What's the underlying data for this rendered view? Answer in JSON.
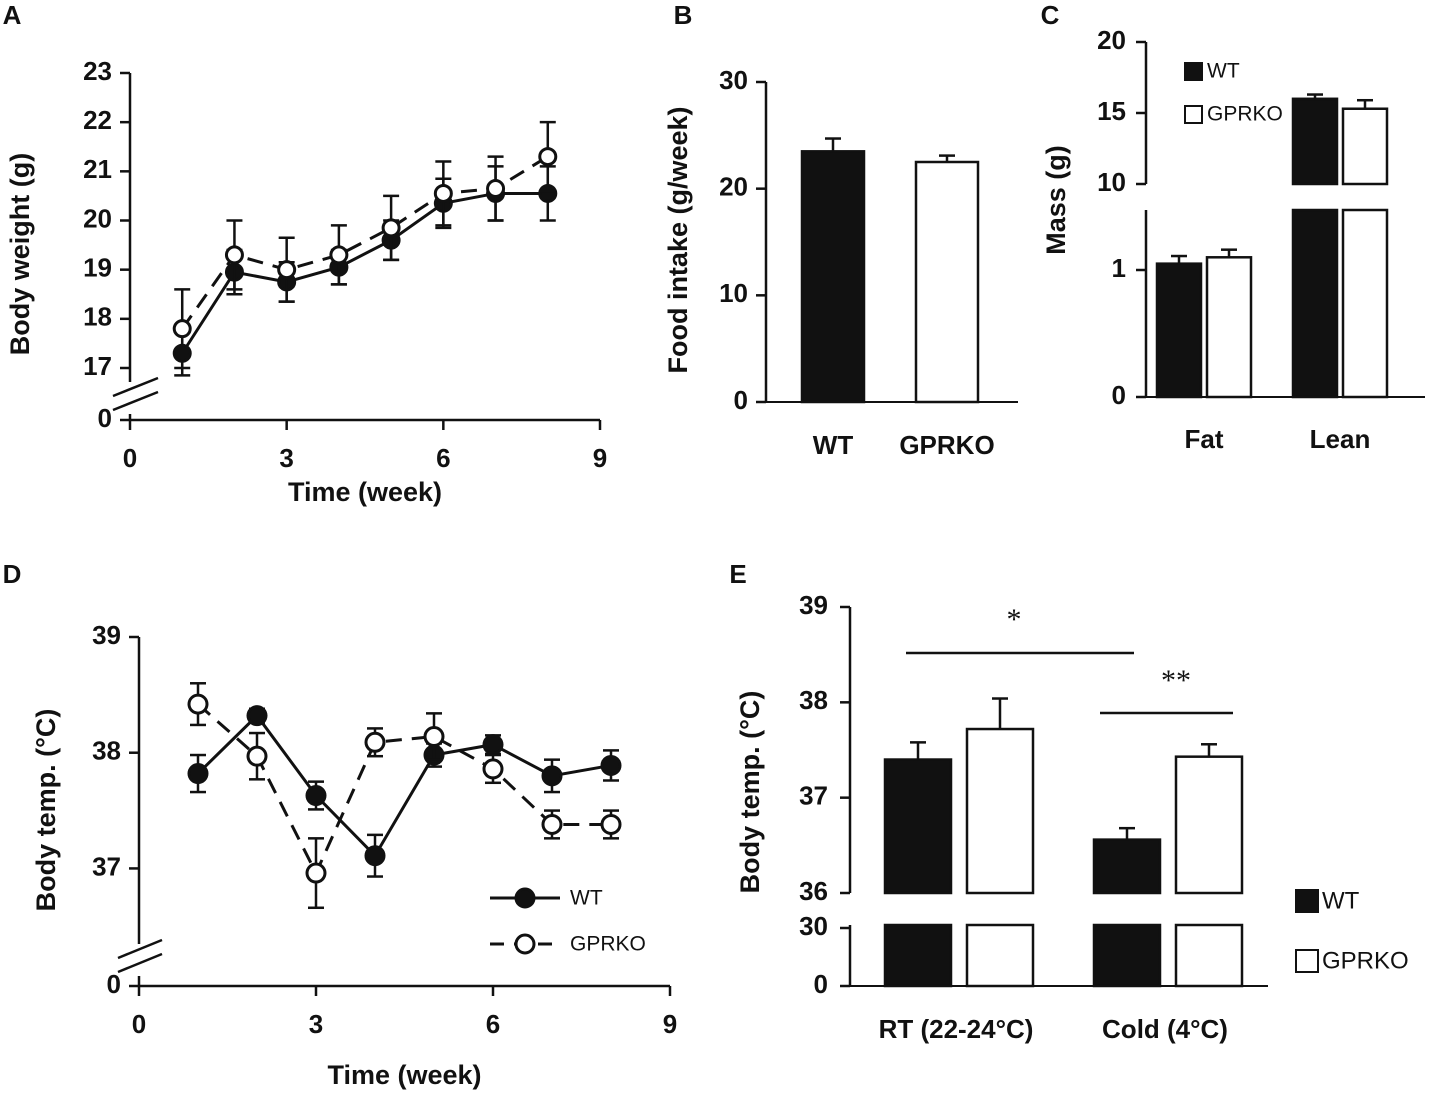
{
  "chart_data": [
    {
      "panel": "A",
      "type": "line",
      "xlabel": "Time (week)",
      "ylabel": "Body weight (g)",
      "x_ticks": [
        "0",
        "3",
        "6",
        "9"
      ],
      "y_ticks": [
        "0",
        "17",
        "18",
        "19",
        "20",
        "21",
        "22",
        "23"
      ],
      "ylim": [
        17,
        23
      ],
      "y_break": "0 // 17",
      "xlim": [
        0,
        9
      ],
      "x": [
        1,
        2,
        3,
        4,
        5,
        6,
        7,
        8
      ],
      "series": [
        {
          "name": "WT",
          "style": "solid-filled",
          "values": [
            17.3,
            18.95,
            18.75,
            19.05,
            19.6,
            20.35,
            20.55,
            20.55
          ],
          "errors": [
            0.45,
            0.45,
            0.4,
            0.35,
            0.4,
            0.5,
            0.55,
            0.55
          ]
        },
        {
          "name": "GPRKO",
          "style": "dashed-open",
          "values": [
            17.8,
            19.3,
            19.0,
            19.3,
            19.85,
            20.55,
            20.65,
            21.3
          ],
          "errors": [
            0.8,
            0.7,
            0.65,
            0.6,
            0.65,
            0.65,
            0.65,
            0.7
          ]
        }
      ]
    },
    {
      "panel": "B",
      "type": "bar",
      "xlabel": "",
      "ylabel": "Food intake (g/week)",
      "categories": [
        "WT",
        "GPRKO"
      ],
      "values": [
        23.5,
        22.5
      ],
      "errors": [
        1.2,
        0.6
      ],
      "y_ticks": [
        "0",
        "10",
        "20",
        "30"
      ],
      "ylim": [
        0,
        30
      ]
    },
    {
      "panel": "C",
      "type": "bar",
      "ylabel": "Mass (g)",
      "categories": [
        "Fat",
        "Lean"
      ],
      "series": [
        {
          "name": "WT",
          "values": [
            1.05,
            16.0
          ],
          "errors": [
            0.06,
            0.3
          ]
        },
        {
          "name": "GPRKO",
          "values": [
            1.1,
            15.3
          ],
          "errors": [
            0.06,
            0.6
          ]
        }
      ],
      "y_ticks": [
        "0",
        "1",
        "10",
        "15",
        "20"
      ],
      "y_break": "between 1 and 10",
      "legend": [
        "WT",
        "GPRKO"
      ]
    },
    {
      "panel": "D",
      "type": "line",
      "xlabel": "Time (week)",
      "ylabel": "Body temp. (°C)",
      "x_ticks": [
        "0",
        "3",
        "6",
        "9"
      ],
      "y_ticks": [
        "0",
        "37",
        "38",
        "39"
      ],
      "ylim": [
        36.9,
        39
      ],
      "y_break": "0 // 37",
      "xlim": [
        0,
        9
      ],
      "x": [
        1,
        2,
        3,
        4,
        5,
        6,
        7,
        8
      ],
      "series": [
        {
          "name": "WT",
          "style": "solid-filled",
          "values": [
            37.82,
            38.32,
            37.63,
            37.11,
            37.98,
            38.07,
            37.8,
            37.89
          ],
          "errors": [
            0.16,
            0.06,
            0.12,
            0.18,
            0.1,
            0.08,
            0.14,
            0.13
          ]
        },
        {
          "name": "GPRKO",
          "style": "dashed-open",
          "values": [
            38.42,
            37.97,
            36.96,
            38.09,
            38.14,
            37.86,
            37.38,
            37.38
          ],
          "errors": [
            0.18,
            0.2,
            0.3,
            0.12,
            0.2,
            0.12,
            0.12,
            0.12
          ]
        }
      ],
      "legend": [
        "WT",
        "GPRKO"
      ]
    },
    {
      "panel": "E",
      "type": "bar",
      "ylabel": "Body temp. (°C)",
      "categories": [
        "RT (22-24°C)",
        "Cold (4°C)"
      ],
      "series": [
        {
          "name": "WT",
          "values": [
            37.4,
            36.56
          ],
          "errors": [
            0.18,
            0.12
          ]
        },
        {
          "name": "GPRKO",
          "values": [
            37.72,
            37.43
          ],
          "errors": [
            0.32,
            0.13
          ]
        }
      ],
      "y_ticks": [
        "0",
        "30",
        "36",
        "37",
        "38",
        "39"
      ],
      "y_break": "between 30 and 36",
      "annotations": [
        {
          "text": "*",
          "spans": "RT WT to Cold WT"
        },
        {
          "text": "**",
          "spans": "Cold WT to Cold GPRKO"
        }
      ],
      "legend": [
        "WT",
        "GPRKO"
      ]
    }
  ]
}
